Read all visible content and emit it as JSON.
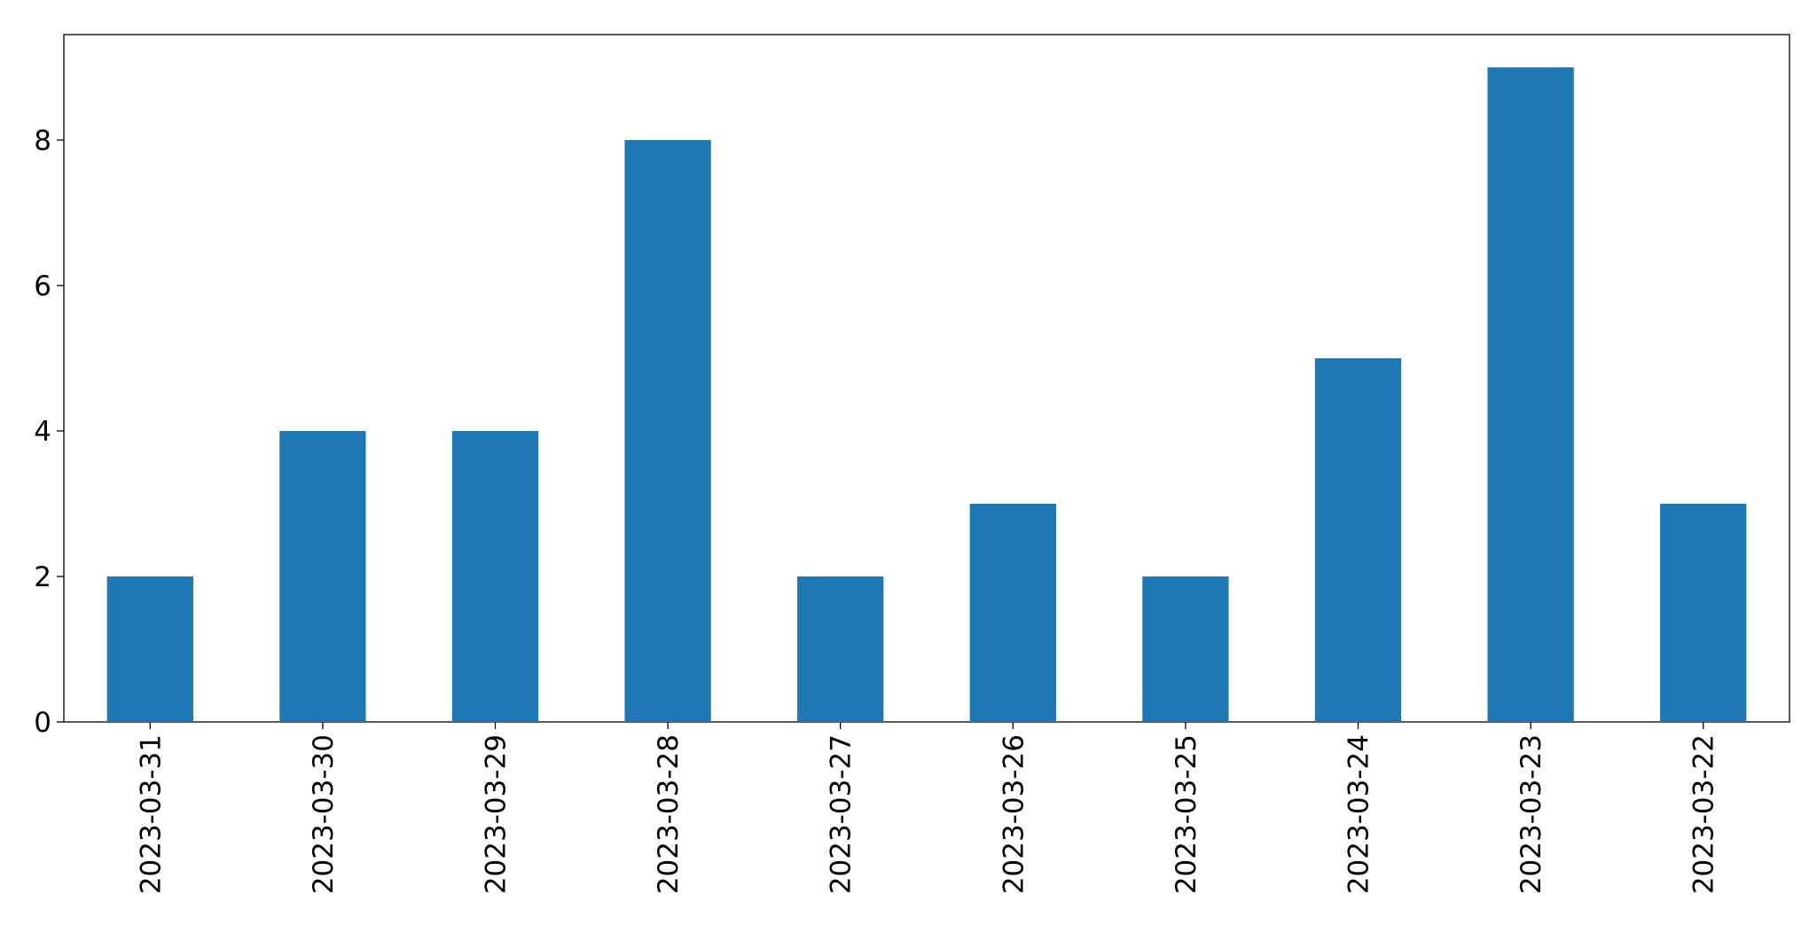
{
  "chart_data": {
    "type": "bar",
    "categories": [
      "2023-03-31",
      "2023-03-30",
      "2023-03-29",
      "2023-03-28",
      "2023-03-27",
      "2023-03-26",
      "2023-03-25",
      "2023-03-24",
      "2023-03-23",
      "2023-03-22"
    ],
    "values": [
      2,
      4,
      4,
      8,
      2,
      3,
      2,
      5,
      9,
      3
    ],
    "color": "#1f77b4",
    "ylim": [
      0,
      9.45
    ],
    "yticks": [
      0,
      2,
      4,
      6,
      8
    ],
    "grid": false
  }
}
